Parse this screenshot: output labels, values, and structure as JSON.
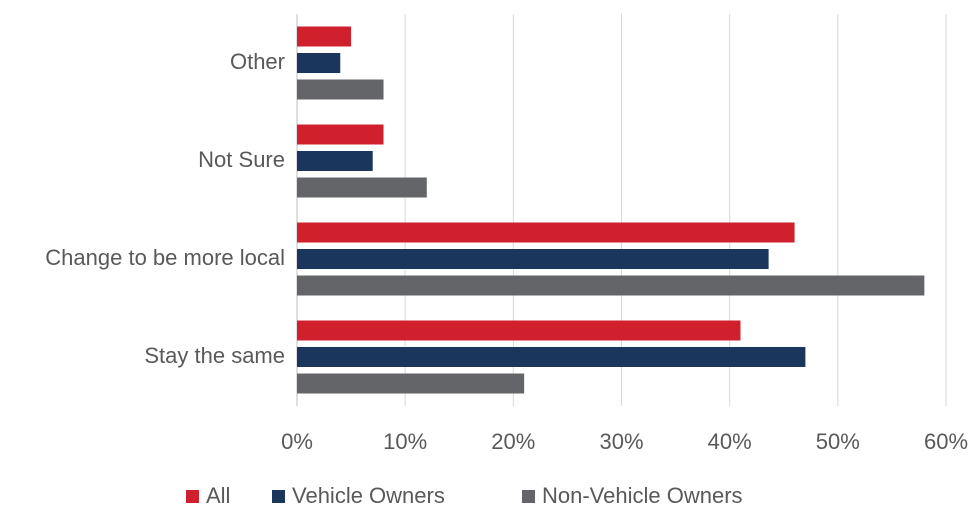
{
  "chart_data": {
    "type": "hbar",
    "categories": [
      "Other",
      "Not Sure",
      "Change to be more local",
      "Stay the same"
    ],
    "series": [
      {
        "name": "All",
        "color": "#d0202e",
        "values": [
          5,
          8,
          46,
          41
        ]
      },
      {
        "name": "Vehicle Owners",
        "color": "#1b365d",
        "values": [
          4,
          7,
          43.6,
          47
        ]
      },
      {
        "name": "Non-Vehicle Owners",
        "color": "#646569",
        "values": [
          8,
          12,
          58,
          21
        ]
      }
    ],
    "xlim": [
      0,
      60
    ],
    "xticks": [
      {
        "value": 0,
        "label": "0%"
      },
      {
        "value": 10,
        "label": "10%"
      },
      {
        "value": 20,
        "label": "20%"
      },
      {
        "value": 30,
        "label": "30%"
      },
      {
        "value": 40,
        "label": "40%"
      },
      {
        "value": 50,
        "label": "50%"
      },
      {
        "value": 60,
        "label": "60%"
      }
    ],
    "grid": true,
    "legend": "bottom"
  }
}
